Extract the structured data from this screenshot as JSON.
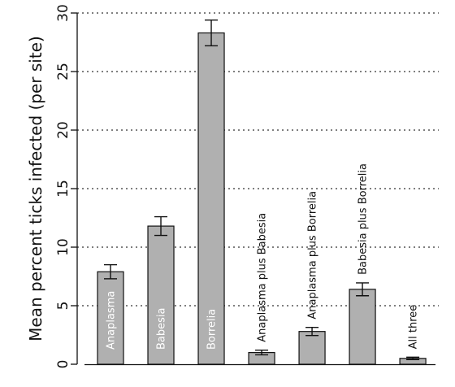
{
  "chart_data": {
    "type": "bar",
    "ylabel": "Mean percent ticks infected (per site)",
    "ylim": [
      0,
      30
    ],
    "yticks": [
      0,
      5,
      10,
      15,
      20,
      25,
      30
    ],
    "grid": "horizontal-dotted",
    "bar_color": "#b0b0b0",
    "categories": [
      "Anaplasma",
      "Babesia",
      "Borrelia",
      "Anaplasma plus Babesia",
      "Anaplasma plus Borrelia",
      "Babesia plus Borrelia",
      "All three"
    ],
    "values": [
      7.9,
      11.8,
      28.3,
      1.0,
      2.8,
      6.4,
      0.5
    ],
    "errors": [
      0.6,
      0.8,
      1.1,
      0.2,
      0.35,
      0.55,
      0.1
    ],
    "label_inside": [
      true,
      true,
      true,
      false,
      false,
      false,
      false
    ]
  }
}
